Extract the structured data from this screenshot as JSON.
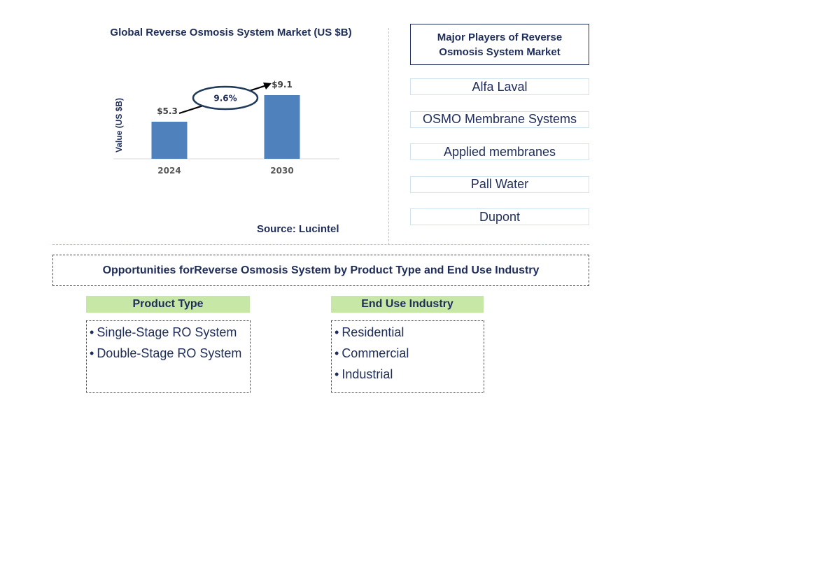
{
  "chart_data": {
    "type": "bar",
    "title": "Global Reverse Osmosis System Market (US $B)",
    "categories": [
      "2024",
      "2030"
    ],
    "values": [
      5.3,
      9.1
    ],
    "value_labels": [
      "$5.3",
      "$9.1"
    ],
    "ylabel": "Value (US $B)",
    "xlabel": "",
    "ylim": [
      0,
      10
    ],
    "grid": false,
    "cagr_label": "9.6%",
    "bar_color": "#4f81bd",
    "source": "Source: Lucintel"
  },
  "players": {
    "header": "Major Players of Reverse Osmosis System Market",
    "items": [
      "Alfa Laval",
      "OSMO Membrane Systems",
      "Applied membranes",
      "Pall Water",
      "Dupont"
    ]
  },
  "opportunities": {
    "title": "Opportunities forReverse Osmosis System by Product Type and End Use Industry",
    "segments": [
      {
        "header": "Product Type",
        "items": [
          "Single-Stage RO System",
          "Double-Stage RO System"
        ]
      },
      {
        "header": "End Use Industry",
        "items": [
          "Residential",
          "Commercial",
          "Industrial"
        ]
      }
    ]
  }
}
